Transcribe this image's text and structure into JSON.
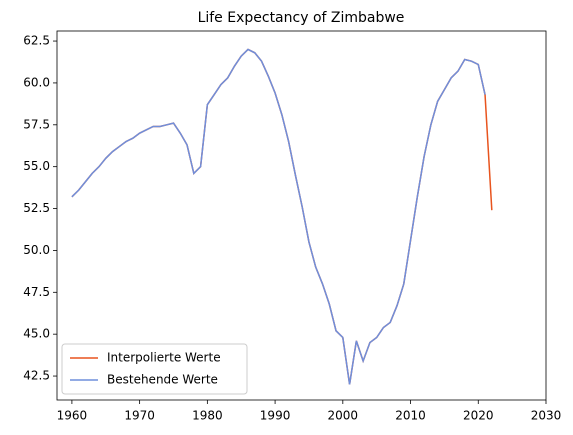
{
  "chart_data": {
    "type": "line",
    "title": "Life Expectancy of Zimbabwe",
    "x": [
      1960,
      1961,
      1962,
      1963,
      1964,
      1965,
      1966,
      1967,
      1968,
      1969,
      1970,
      1971,
      1972,
      1973,
      1974,
      1975,
      1976,
      1977,
      1978,
      1979,
      1980,
      1981,
      1982,
      1983,
      1984,
      1985,
      1986,
      1987,
      1988,
      1989,
      1990,
      1991,
      1992,
      1993,
      1994,
      1995,
      1996,
      1997,
      1998,
      1999,
      2000,
      2001,
      2002,
      2003,
      2004,
      2005,
      2006,
      2007,
      2008,
      2009,
      2010,
      2011,
      2012,
      2013,
      2014,
      2015,
      2016,
      2017,
      2018,
      2019,
      2020,
      2021,
      2022
    ],
    "series": [
      {
        "name": "Interpolierte Werte",
        "color": "#e8541e",
        "values": [
          53.2,
          53.6,
          54.1,
          54.6,
          55.0,
          55.5,
          55.9,
          56.2,
          56.5,
          56.7,
          57.0,
          57.2,
          57.4,
          57.4,
          57.5,
          57.6,
          57.0,
          56.3,
          54.6,
          55.0,
          58.7,
          59.3,
          59.9,
          60.3,
          61.0,
          61.6,
          62.0,
          61.8,
          61.3,
          60.4,
          59.4,
          58.1,
          56.5,
          54.5,
          52.6,
          50.5,
          49.0,
          48.0,
          46.8,
          45.2,
          44.8,
          42.0,
          44.6,
          43.4,
          44.5,
          44.8,
          45.4,
          45.7,
          46.7,
          48.0,
          50.6,
          53.2,
          55.6,
          57.5,
          58.9,
          59.6,
          60.3,
          60.7,
          61.4,
          61.3,
          61.1,
          59.3,
          52.4
        ]
      },
      {
        "name": "Bestehende Werte",
        "color": "#6f8fdc",
        "values": [
          53.2,
          53.6,
          54.1,
          54.6,
          55.0,
          55.5,
          55.9,
          56.2,
          56.5,
          56.7,
          57.0,
          57.2,
          57.4,
          57.4,
          57.5,
          57.6,
          57.0,
          56.3,
          54.6,
          55.0,
          58.7,
          59.3,
          59.9,
          60.3,
          61.0,
          61.6,
          62.0,
          61.8,
          61.3,
          60.4,
          59.4,
          58.1,
          56.5,
          54.5,
          52.6,
          50.5,
          49.0,
          48.0,
          46.8,
          45.2,
          44.8,
          42.0,
          44.6,
          43.4,
          44.5,
          44.8,
          45.4,
          45.7,
          46.7,
          48.0,
          50.6,
          53.2,
          55.6,
          57.5,
          58.9,
          59.6,
          60.3,
          60.7,
          61.4,
          61.3,
          61.1,
          59.3,
          null
        ]
      }
    ],
    "xlim": [
      1957.8,
      2030
    ],
    "xticks": [
      1960,
      1970,
      1980,
      1990,
      2000,
      2010,
      2020,
      2030
    ],
    "ylim": [
      41.07,
      63.1
    ],
    "yticks": [
      42.5,
      {
        "value": 45,
        "label": "45.0"
      },
      47.5,
      {
        "value": 50,
        "label": "50.0"
      },
      52.5,
      {
        "value": 55,
        "label": "55.0"
      },
      57.5,
      {
        "value": 60,
        "label": "60.0"
      },
      62.5
    ],
    "legend": "lower left"
  }
}
